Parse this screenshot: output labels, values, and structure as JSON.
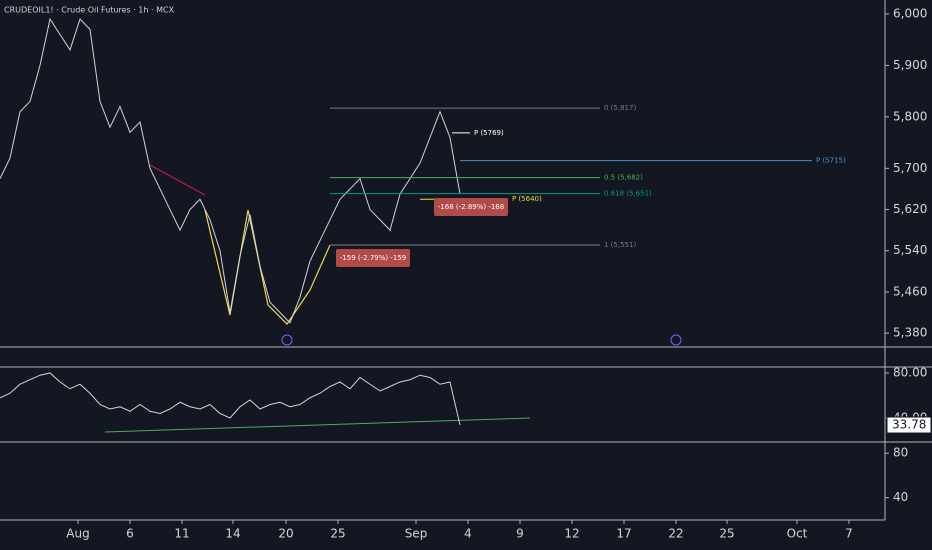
{
  "chart_data": [
    {
      "type": "line",
      "title": "CRUDEOIL1! · Crude Oil Futures · 1h · MCX",
      "color": "#d1d4dc",
      "x": [
        0,
        1,
        2,
        3,
        4,
        5,
        6,
        7,
        8,
        9,
        10,
        11,
        12,
        13,
        14,
        15,
        16,
        17,
        18,
        19,
        20,
        21,
        22,
        23,
        24,
        25,
        26,
        27,
        28,
        29,
        30,
        31,
        32,
        33,
        34,
        35,
        36,
        37,
        38,
        39,
        40,
        41,
        42,
        43,
        44,
        45,
        46
      ],
      "values": [
        5680,
        5720,
        5810,
        5830,
        5900,
        5990,
        5960,
        5930,
        5990,
        5970,
        5830,
        5780,
        5820,
        5770,
        5790,
        5700,
        5660,
        5620,
        5580,
        5620,
        5640,
        5600,
        5540,
        5420,
        5530,
        5610,
        5510,
        5440,
        5420,
        5400,
        5450,
        5520,
        5560,
        5600,
        5640,
        5660,
        5680,
        5620,
        5600,
        5580,
        5650,
        5680,
        5710,
        5760,
        5810,
        5760,
        5650
      ],
      "xlim": [
        0,
        88.5
      ],
      "ylim": [
        5353,
        6027
      ],
      "yticks": [
        {
          "value": 6000,
          "label": "6,000"
        },
        {
          "value": 5900,
          "label": "5,900"
        },
        {
          "value": 5800,
          "label": "5,800"
        },
        {
          "value": 5700,
          "label": "5,700"
        },
        {
          "value": 5620,
          "label": "5,620"
        },
        {
          "value": 5540,
          "label": "5,540"
        },
        {
          "value": 5460,
          "label": "5,460"
        },
        {
          "value": 5380,
          "label": "5,380"
        }
      ],
      "levels": [
        {
          "value": 5817,
          "label": "0 (5,817)",
          "color": "#787b86"
        },
        {
          "value": 5682,
          "label": "0.5 (5,682)",
          "color": "#4caf50"
        },
        {
          "value": 5651,
          "label": "0.618 (5,651)",
          "color": "#089981"
        },
        {
          "value": 5551,
          "label": "1 (5,551)",
          "color": "#787b86"
        },
        {
          "value": 5769,
          "label": "P (5769)",
          "color": "#ffffff"
        },
        {
          "value": 5715,
          "label": "P (5715)",
          "color": "#4a90c8"
        },
        {
          "value": 5640,
          "label": "P (5640)",
          "color": "#f5d742"
        }
      ],
      "notes": [
        "-159 (-2.79%) -159",
        "-168 (-2.89%) -168"
      ]
    },
    {
      "type": "line",
      "color": "#d1d4dc",
      "values": [
        58,
        62,
        70,
        74,
        78,
        80,
        72,
        66,
        70,
        62,
        52,
        48,
        50,
        46,
        52,
        46,
        44,
        48,
        54,
        50,
        48,
        52,
        44,
        40,
        50,
        56,
        48,
        52,
        54,
        50,
        52,
        58,
        62,
        68,
        72,
        66,
        76,
        70,
        64,
        68,
        72,
        74,
        78,
        76,
        70,
        72,
        33.78
      ],
      "ylim": [
        18.7,
        85.3
      ],
      "yticks": [
        {
          "value": 80,
          "label": "80.00"
        },
        {
          "value": 40,
          "label": "40.00"
        }
      ]
    },
    {
      "type": "empty",
      "ylim": [
        20,
        90
      ],
      "yticks": [
        80,
        40
      ],
      "xticks": [
        {
          "value": 7.8,
          "label": "Aug"
        },
        {
          "value": 13,
          "label": "6"
        },
        {
          "value": 18.2,
          "label": "11"
        },
        {
          "value": 23.3,
          "label": "14"
        },
        {
          "value": 28.6,
          "label": "20"
        },
        {
          "value": 33.8,
          "label": "25"
        },
        {
          "value": 41.6,
          "label": "Sep"
        },
        {
          "value": 46.8,
          "label": "4"
        },
        {
          "value": 52,
          "label": "9"
        },
        {
          "value": 57.2,
          "label": "12"
        },
        {
          "value": 62.4,
          "label": "17"
        },
        {
          "value": 67.6,
          "label": "22"
        },
        {
          "value": 72.7,
          "label": "25"
        },
        {
          "value": 79.7,
          "label": "Oct"
        },
        {
          "value": 84.9,
          "label": "7"
        }
      ]
    }
  ]
}
